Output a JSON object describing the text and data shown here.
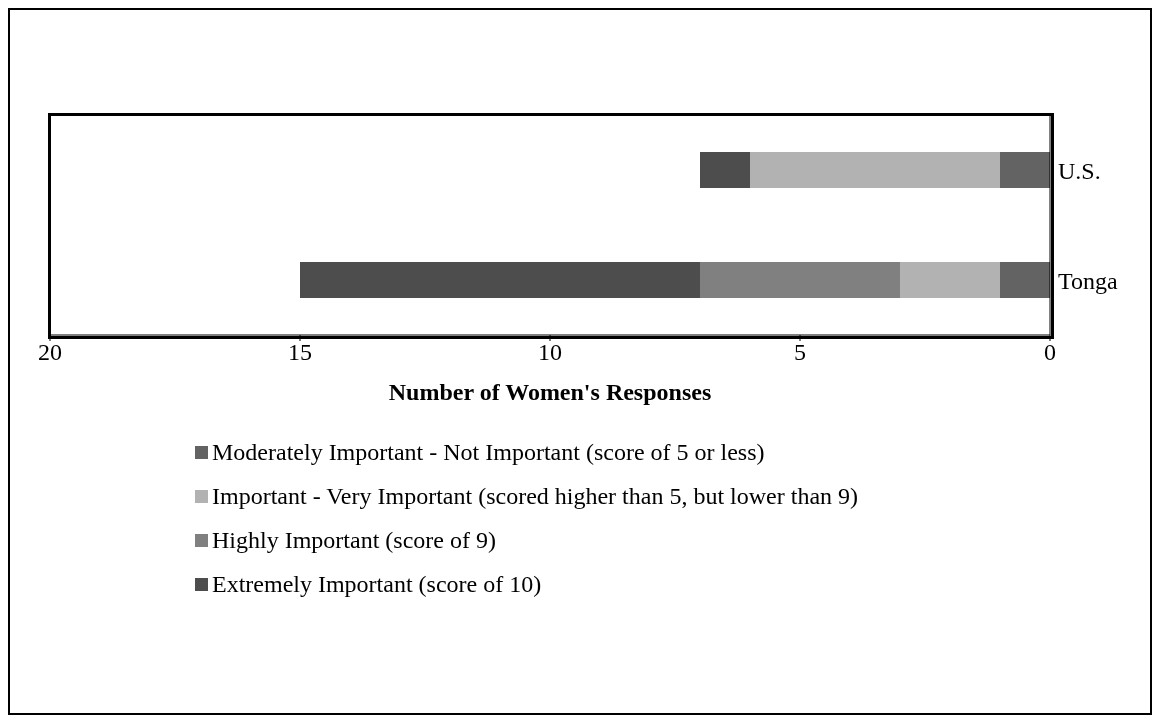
{
  "chart_data": {
    "type": "bar",
    "orientation": "horizontal",
    "stacked": true,
    "categories": [
      "U.S.",
      "Tonga"
    ],
    "series": [
      {
        "name": "Moderately Important - Not Important (score of 5 or less)",
        "color": "#636363",
        "values": [
          1,
          1
        ]
      },
      {
        "name": "Important - Very Important (scored higher than 5, but lower than 9)",
        "color": "#b2b2b2",
        "values": [
          5,
          2
        ]
      },
      {
        "name": "Highly Important (score of 9)",
        "color": "#808080",
        "values": [
          0,
          4
        ]
      },
      {
        "name": "Extremely Important (score of 10)",
        "color": "#4d4d4d",
        "values": [
          1,
          8
        ]
      }
    ],
    "xlim": [
      20,
      0
    ],
    "xticks": [
      20,
      15,
      10,
      5,
      0
    ],
    "xlabel": "Number of Women's Responses",
    "grid": false,
    "legend": "bottom"
  }
}
